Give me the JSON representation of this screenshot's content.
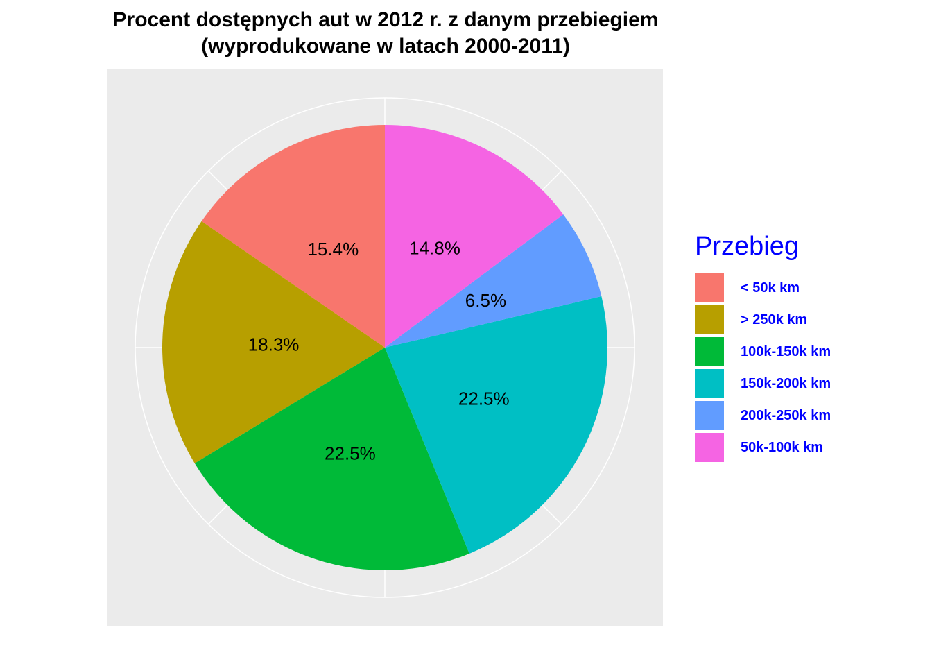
{
  "chart_data": {
    "type": "pie",
    "title_line1": "Procent dostępnych aut w 2012 r. z danym przebiegiem",
    "title_line2": "(wyprodukowane w latach 2000-2011)",
    "legend_title": "Przebieg",
    "legend_position": "right",
    "legend_color": "#0000ff",
    "panel_background": "#ebebeb",
    "grid_color": "#ffffff",
    "grid": true,
    "slices": [
      {
        "label": "< 50k km",
        "value": 15.4,
        "display": "15.4%",
        "color": "#f8766d"
      },
      {
        "label": "> 250k km",
        "value": 18.3,
        "display": "18.3%",
        "color": "#b79f00"
      },
      {
        "label": "100k-150k km",
        "value": 22.5,
        "display": "22.5%",
        "color": "#00ba38"
      },
      {
        "label": "150k-200k km",
        "value": 22.5,
        "display": "22.5%",
        "color": "#00bfc4"
      },
      {
        "label": "200k-250k km",
        "value": 6.5,
        "display": "6.5%",
        "color": "#619cff"
      },
      {
        "label": "50k-100k km",
        "value": 14.8,
        "display": "14.8%",
        "color": "#f564e3"
      }
    ]
  }
}
